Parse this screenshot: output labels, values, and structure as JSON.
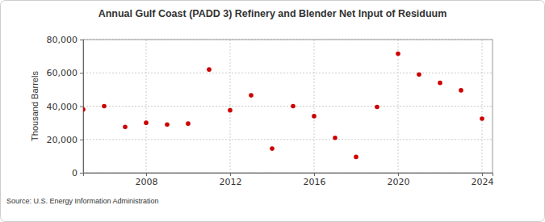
{
  "chart_data": {
    "type": "scatter",
    "title": "Annual Gulf Coast (PADD 3) Refinery and Blender Net Input of Residuum",
    "y_label": "Thousand Barrels",
    "annotations": [
      "Source: U.S. Energy Information Administration"
    ],
    "x": [
      2005,
      2006,
      2007,
      2008,
      2009,
      2010,
      2011,
      2012,
      2013,
      2014,
      2015,
      2016,
      2017,
      2018,
      2019,
      2020,
      2021,
      2022,
      2023,
      2024
    ],
    "series": [
      {
        "name": "Residuum",
        "color": "#cc0000",
        "marker": "circle",
        "values": [
          38000,
          40000,
          27500,
          30000,
          29000,
          29500,
          62000,
          37500,
          46500,
          14500,
          40000,
          34000,
          21000,
          9500,
          39500,
          71500,
          59000,
          54000,
          49500,
          32500
        ]
      }
    ],
    "xlim": [
      2005,
      2024.5
    ],
    "xticks": [
      2008,
      2012,
      2016,
      2020,
      2024
    ],
    "ylim": [
      0,
      80000
    ],
    "yticks": [
      0,
      {
        "value": 20000,
        "label": "20,000"
      },
      {
        "value": 40000,
        "label": "40,000"
      },
      {
        "value": 60000,
        "label": "60,000"
      },
      {
        "value": 80000,
        "label": "80,000"
      }
    ],
    "grid": true
  }
}
